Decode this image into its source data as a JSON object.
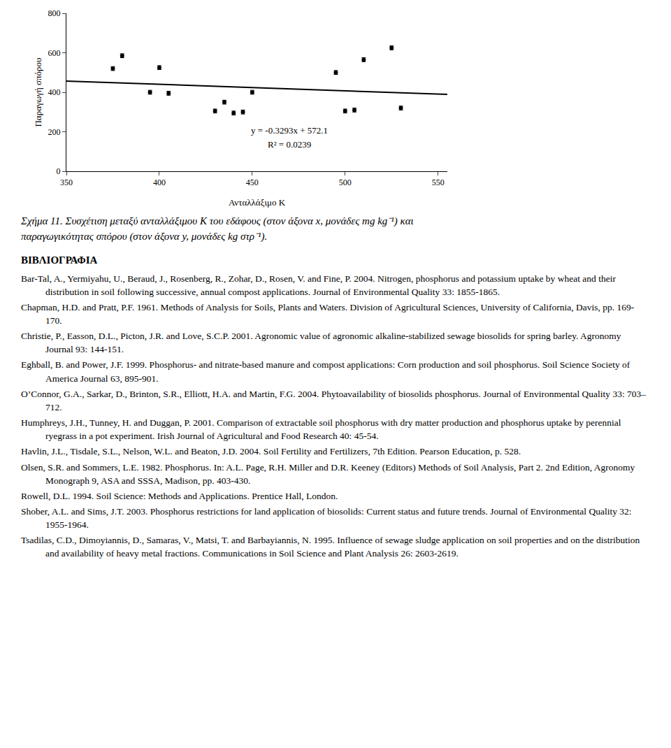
{
  "chart_data": {
    "type": "scatter",
    "x": [
      375,
      380,
      395,
      400,
      405,
      430,
      435,
      440,
      445,
      450,
      495,
      500,
      505,
      510,
      525,
      530
    ],
    "values": [
      520,
      585,
      400,
      525,
      395,
      305,
      350,
      295,
      300,
      400,
      500,
      305,
      310,
      565,
      625,
      320
    ],
    "errors": [
      10,
      10,
      10,
      10,
      10,
      10,
      10,
      10,
      10,
      10,
      10,
      10,
      10,
      10,
      10,
      10
    ],
    "color": "#000000",
    "marker": "circle",
    "trendline": {
      "x": [
        350,
        555
      ],
      "values": [
        456.845,
        389.3385
      ],
      "color": "#000000",
      "line_style": "solid"
    },
    "xlabel": "Ανταλλάξιμο K",
    "ylabel": "Παραγωγή σπόρου",
    "xlim": [
      350,
      555
    ],
    "ylim": [
      0,
      800
    ],
    "xticks": [
      350,
      400,
      450,
      500,
      550
    ],
    "yticks": [
      0,
      200,
      400,
      600,
      800
    ],
    "grid": false,
    "annotations": [
      "y = -0.3293x + 572.1",
      "R² = 0.0239"
    ],
    "caption": [
      "Σχήμα 11. Συσχέτιση μεταξύ ανταλλάξιμου K του εδάφους (στον άξονα x, μονάδες mg kg⁻¹) και",
      "παραγωγικότητας σπόρου (στον άξονα y, μονάδες kg στρ⁻¹)."
    ],
    "bibliography": {
      "title": "ΒΙΒΛΙΟΓΡΑΦΙΑ",
      "entries": [
        "Bar-Tal, A., Yermiyahu, U., Beraud, J., Rosenberg, R., Zohar, D., Rosen, V. and Fine, P. 2004. Nitrogen, phosphorus and potassium uptake by wheat and their distribution in soil following successive, annual compost applications. Journal of Environmental Quality 33: 1855-1865.",
        "Chapman, H.D. and Pratt, P.F. 1961. Methods of Analysis for Soils, Plants and Waters. Division of Agricultural Sciences, University of California, Davis, pp. 169-170.",
        "Christie, P., Easson, D.L., Picton, J.R. and Love, S.C.P. 2001. Agronomic value of agronomic alkaline-stabilized sewage biosolids for spring barley. Agronomy Journal 93: 144-151.",
        "Eghball, B. and Power, J.F. 1999. Phosphorus- and nitrate-based manure and compost applications: Corn production and soil phosphorus. Soil Science Society of America Journal 63, 895-901.",
        "O’Connor, G.A., Sarkar, D., Brinton, S.R., Elliott, H.A. and Martin, F.G. 2004. Phytoavailability of biosolids phosphorus. Journal of Environmental Quality 33: 703–712.",
        "Humphreys, J.H., Tunney, H. and Duggan, P. 2001. Comparison of extractable soil phosphorus with dry matter production and phosphorus uptake by perennial ryegrass in a pot experiment. Irish Journal of Agricultural and Food Research 40: 45-54.",
        "Havlin, J.L., Tisdale, S.L., Nelson, W.L. and Beaton, J.D. 2004. Soil Fertility and Fertilizers, 7th Edition. Pearson Education, p. 528.",
        "Olsen, S.R. and Sommers, L.E. 1982. Phosphorus. In: A.L. Page, R.H. Miller and D.R. Keeney (Editors) Methods of Soil Analysis, Part 2. 2nd Edition, Agronomy Monograph 9, ASA and SSSA, Madison, pp. 403-430.",
        "Rowell, D.L. 1994. Soil Science: Methods and Applications. Prentice Hall, London.",
        "Shober, A.L. and Sims, J.T. 2003. Phosphorus restrictions for land application of biosolids: Current status and future trends. Journal of Environmental Quality 32: 1955-1964.",
        "Tsadilas, C.D., Dimoyiannis, D., Samaras, V., Matsi, T. and Barbayiannis, N. 1995. Influence of sewage sludge application on soil properties and on the distribution and availability of heavy metal fractions. Communications in Soil Science and Plant Analysis 26: 2603-2619."
      ]
    }
  }
}
